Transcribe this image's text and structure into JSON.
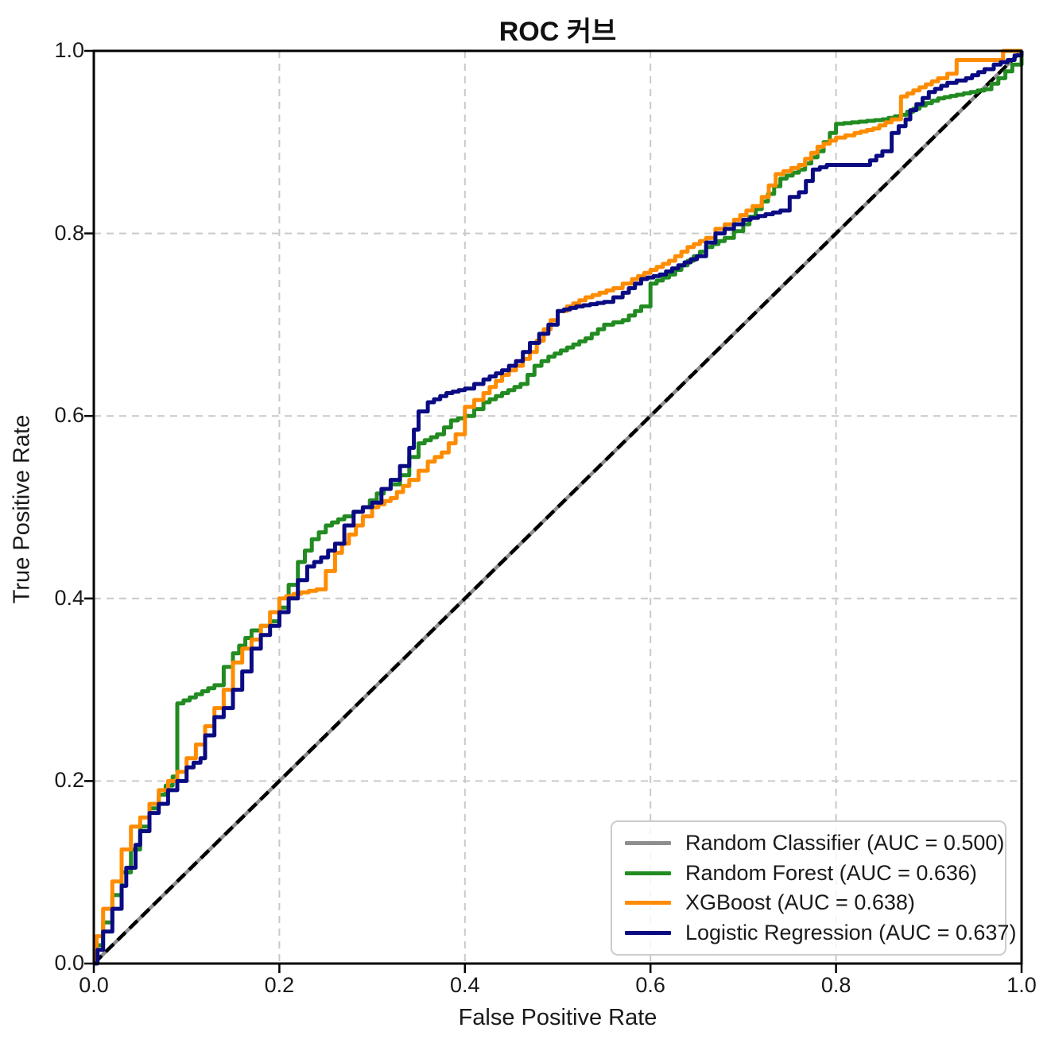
{
  "title": "ROC 커브",
  "xlabel": "False Positive Rate",
  "ylabel": "True Positive Rate",
  "chart_data": {
    "type": "line",
    "title": "ROC 커브",
    "xlabel": "False Positive Rate",
    "ylabel": "True Positive Rate",
    "xlim": [
      0.0,
      1.0
    ],
    "ylim": [
      0.0,
      1.0
    ],
    "xticks": [
      0.0,
      0.2,
      0.4,
      0.6,
      0.8,
      1.0
    ],
    "yticks": [
      0.0,
      0.2,
      0.4,
      0.6,
      0.8,
      1.0
    ],
    "xtick_labels": [
      "0.0",
      "0.2",
      "0.4",
      "0.6",
      "0.8",
      "1.0"
    ],
    "ytick_labels": [
      "0.0",
      "0.2",
      "0.4",
      "0.6",
      "0.8",
      "1.0"
    ],
    "grid": true,
    "grid_color": "#c9c9c9",
    "legend_position": "lower right",
    "series": [
      {
        "id": "random-classifier",
        "name": "Random Classifier (AUC = 0.500)",
        "auc": 0.5,
        "color": "#8e8e8e",
        "overlay_color": "#000000",
        "style": "diagonal-dashed",
        "points": [
          [
            0,
            0
          ],
          [
            1,
            1
          ]
        ]
      },
      {
        "id": "random-forest",
        "name": "Random Forest (AUC = 0.636)",
        "auc": 0.636,
        "color": "#228B22",
        "style": "step",
        "points": [
          [
            0,
            0
          ],
          [
            0.003,
            0.02
          ],
          [
            0.01,
            0.045
          ],
          [
            0.02,
            0.075
          ],
          [
            0.03,
            0.1
          ],
          [
            0.04,
            0.125
          ],
          [
            0.05,
            0.15
          ],
          [
            0.06,
            0.17
          ],
          [
            0.07,
            0.185
          ],
          [
            0.085,
            0.205
          ],
          [
            0.09,
            0.285
          ],
          [
            0.11,
            0.295
          ],
          [
            0.13,
            0.305
          ],
          [
            0.14,
            0.325
          ],
          [
            0.15,
            0.34
          ],
          [
            0.17,
            0.365
          ],
          [
            0.19,
            0.375
          ],
          [
            0.2,
            0.39
          ],
          [
            0.21,
            0.415
          ],
          [
            0.22,
            0.44
          ],
          [
            0.235,
            0.465
          ],
          [
            0.25,
            0.48
          ],
          [
            0.27,
            0.49
          ],
          [
            0.29,
            0.5
          ],
          [
            0.305,
            0.515
          ],
          [
            0.32,
            0.525
          ],
          [
            0.33,
            0.535
          ],
          [
            0.34,
            0.555
          ],
          [
            0.35,
            0.57
          ],
          [
            0.37,
            0.58
          ],
          [
            0.385,
            0.595
          ],
          [
            0.4,
            0.6
          ],
          [
            0.42,
            0.615
          ],
          [
            0.44,
            0.625
          ],
          [
            0.46,
            0.635
          ],
          [
            0.475,
            0.655
          ],
          [
            0.49,
            0.665
          ],
          [
            0.51,
            0.675
          ],
          [
            0.53,
            0.685
          ],
          [
            0.55,
            0.7
          ],
          [
            0.57,
            0.705
          ],
          [
            0.59,
            0.72
          ],
          [
            0.6,
            0.745
          ],
          [
            0.62,
            0.755
          ],
          [
            0.64,
            0.77
          ],
          [
            0.66,
            0.785
          ],
          [
            0.68,
            0.795
          ],
          [
            0.7,
            0.81
          ],
          [
            0.72,
            0.835
          ],
          [
            0.74,
            0.86
          ],
          [
            0.76,
            0.87
          ],
          [
            0.78,
            0.89
          ],
          [
            0.8,
            0.92
          ],
          [
            0.85,
            0.925
          ],
          [
            0.87,
            0.93
          ],
          [
            0.89,
            0.94
          ],
          [
            0.91,
            0.948
          ],
          [
            0.93,
            0.952
          ],
          [
            0.96,
            0.958
          ],
          [
            0.975,
            0.97
          ],
          [
            0.99,
            0.985
          ],
          [
            1,
            1
          ]
        ]
      },
      {
        "id": "xgboost",
        "name": "XGBoost (AUC = 0.638)",
        "auc": 0.638,
        "color": "#FF8C00",
        "style": "step",
        "points": [
          [
            0,
            0
          ],
          [
            0.003,
            0.03
          ],
          [
            0.01,
            0.06
          ],
          [
            0.02,
            0.09
          ],
          [
            0.03,
            0.125
          ],
          [
            0.04,
            0.15
          ],
          [
            0.05,
            0.16
          ],
          [
            0.06,
            0.175
          ],
          [
            0.07,
            0.19
          ],
          [
            0.08,
            0.2
          ],
          [
            0.09,
            0.21
          ],
          [
            0.1,
            0.225
          ],
          [
            0.11,
            0.24
          ],
          [
            0.12,
            0.26
          ],
          [
            0.13,
            0.28
          ],
          [
            0.14,
            0.3
          ],
          [
            0.15,
            0.33
          ],
          [
            0.16,
            0.345
          ],
          [
            0.17,
            0.355
          ],
          [
            0.18,
            0.37
          ],
          [
            0.19,
            0.385
          ],
          [
            0.2,
            0.4
          ],
          [
            0.215,
            0.405
          ],
          [
            0.24,
            0.41
          ],
          [
            0.25,
            0.43
          ],
          [
            0.26,
            0.45
          ],
          [
            0.275,
            0.47
          ],
          [
            0.29,
            0.49
          ],
          [
            0.3,
            0.5
          ],
          [
            0.32,
            0.51
          ],
          [
            0.34,
            0.53
          ],
          [
            0.36,
            0.55
          ],
          [
            0.375,
            0.56
          ],
          [
            0.39,
            0.58
          ],
          [
            0.4,
            0.61
          ],
          [
            0.42,
            0.625
          ],
          [
            0.44,
            0.645
          ],
          [
            0.455,
            0.655
          ],
          [
            0.47,
            0.67
          ],
          [
            0.485,
            0.695
          ],
          [
            0.5,
            0.715
          ],
          [
            0.51,
            0.72
          ],
          [
            0.53,
            0.73
          ],
          [
            0.56,
            0.74
          ],
          [
            0.58,
            0.75
          ],
          [
            0.6,
            0.76
          ],
          [
            0.62,
            0.77
          ],
          [
            0.64,
            0.785
          ],
          [
            0.66,
            0.795
          ],
          [
            0.67,
            0.805
          ],
          [
            0.69,
            0.815
          ],
          [
            0.71,
            0.83
          ],
          [
            0.72,
            0.84
          ],
          [
            0.735,
            0.865
          ],
          [
            0.76,
            0.875
          ],
          [
            0.78,
            0.895
          ],
          [
            0.8,
            0.905
          ],
          [
            0.82,
            0.91
          ],
          [
            0.84,
            0.915
          ],
          [
            0.86,
            0.925
          ],
          [
            0.87,
            0.95
          ],
          [
            0.89,
            0.96
          ],
          [
            0.91,
            0.97
          ],
          [
            0.92,
            0.975
          ],
          [
            0.93,
            0.99
          ],
          [
            0.975,
            0.99
          ],
          [
            0.98,
            1
          ],
          [
            1,
            1
          ]
        ]
      },
      {
        "id": "logistic-regression",
        "name": "Logistic Regression (AUC = 0.637)",
        "auc": 0.637,
        "color": "#0A0A82",
        "style": "step",
        "points": [
          [
            0,
            0
          ],
          [
            0.004,
            0.015
          ],
          [
            0.01,
            0.035
          ],
          [
            0.02,
            0.06
          ],
          [
            0.03,
            0.085
          ],
          [
            0.035,
            0.105
          ],
          [
            0.045,
            0.13
          ],
          [
            0.05,
            0.145
          ],
          [
            0.06,
            0.165
          ],
          [
            0.07,
            0.175
          ],
          [
            0.08,
            0.19
          ],
          [
            0.09,
            0.2
          ],
          [
            0.1,
            0.215
          ],
          [
            0.115,
            0.225
          ],
          [
            0.12,
            0.25
          ],
          [
            0.13,
            0.27
          ],
          [
            0.14,
            0.28
          ],
          [
            0.15,
            0.3
          ],
          [
            0.16,
            0.32
          ],
          [
            0.17,
            0.345
          ],
          [
            0.18,
            0.36
          ],
          [
            0.19,
            0.37
          ],
          [
            0.2,
            0.385
          ],
          [
            0.21,
            0.4
          ],
          [
            0.22,
            0.42
          ],
          [
            0.23,
            0.435
          ],
          [
            0.245,
            0.445
          ],
          [
            0.26,
            0.46
          ],
          [
            0.27,
            0.48
          ],
          [
            0.28,
            0.495
          ],
          [
            0.3,
            0.505
          ],
          [
            0.31,
            0.52
          ],
          [
            0.32,
            0.53
          ],
          [
            0.33,
            0.545
          ],
          [
            0.34,
            0.565
          ],
          [
            0.345,
            0.585
          ],
          [
            0.35,
            0.605
          ],
          [
            0.36,
            0.615
          ],
          [
            0.38,
            0.625
          ],
          [
            0.4,
            0.63
          ],
          [
            0.42,
            0.64
          ],
          [
            0.44,
            0.65
          ],
          [
            0.455,
            0.66
          ],
          [
            0.47,
            0.68
          ],
          [
            0.48,
            0.69
          ],
          [
            0.49,
            0.7
          ],
          [
            0.5,
            0.715
          ],
          [
            0.52,
            0.72
          ],
          [
            0.55,
            0.725
          ],
          [
            0.57,
            0.735
          ],
          [
            0.59,
            0.75
          ],
          [
            0.61,
            0.755
          ],
          [
            0.63,
            0.765
          ],
          [
            0.65,
            0.775
          ],
          [
            0.66,
            0.79
          ],
          [
            0.67,
            0.8
          ],
          [
            0.69,
            0.81
          ],
          [
            0.7,
            0.815
          ],
          [
            0.74,
            0.825
          ],
          [
            0.75,
            0.84
          ],
          [
            0.76,
            0.845
          ],
          [
            0.775,
            0.87
          ],
          [
            0.79,
            0.875
          ],
          [
            0.83,
            0.875
          ],
          [
            0.85,
            0.89
          ],
          [
            0.86,
            0.91
          ],
          [
            0.875,
            0.925
          ],
          [
            0.88,
            0.935
          ],
          [
            0.9,
            0.955
          ],
          [
            0.92,
            0.965
          ],
          [
            0.94,
            0.97
          ],
          [
            0.96,
            0.98
          ],
          [
            0.97,
            0.985
          ],
          [
            0.985,
            0.99
          ],
          [
            1,
            1
          ]
        ]
      }
    ]
  }
}
